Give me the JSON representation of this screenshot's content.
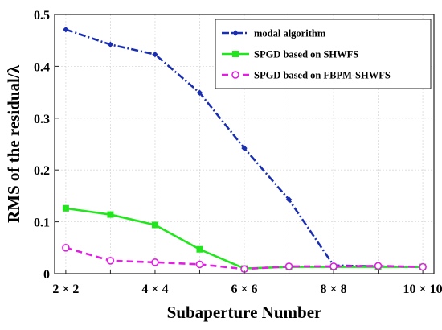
{
  "chart_data": {
    "type": "line",
    "title": "",
    "xlabel": "Subaperture Number",
    "ylabel": "RMS of the residual/λ",
    "x": [
      2,
      3,
      4,
      5,
      6,
      7,
      8,
      9,
      10
    ],
    "x_tick_values": [
      2,
      4,
      6,
      8,
      10
    ],
    "x_tick_labels": [
      "2 × 2",
      "4 × 4",
      "6 × 6",
      "8 × 8",
      "10 × 10"
    ],
    "xlim": [
      1.75,
      10.25
    ],
    "ylim": [
      0,
      0.5
    ],
    "y_tick_values": [
      0,
      0.1,
      0.2,
      0.3,
      0.4,
      0.5
    ],
    "y_tick_labels": [
      "0",
      "0.1",
      "0.2",
      "0.3",
      "0.4",
      "0.5"
    ],
    "grid": true,
    "legend_position": "top-right",
    "series": [
      {
        "name": "modal algorithm",
        "color": "#1a2fb0",
        "line_style": "dash-dot",
        "marker": "filled-diamond",
        "values": [
          0.471,
          0.442,
          0.423,
          0.349,
          0.242,
          0.143,
          0.016,
          0.014,
          0.013
        ]
      },
      {
        "name": "SPGD based on SHWFS",
        "color": "#22e51e",
        "line_style": "solid",
        "marker": "filled-square",
        "values": [
          0.126,
          0.114,
          0.094,
          0.047,
          0.01,
          0.013,
          0.013,
          0.013,
          0.013
        ]
      },
      {
        "name": "SPGD based on FBPM-SHWFS",
        "color": "#e020e0",
        "line_style": "dashed",
        "marker": "open-circle",
        "values": [
          0.05,
          0.025,
          0.022,
          0.018,
          0.009,
          0.014,
          0.014,
          0.015,
          0.013
        ]
      }
    ]
  }
}
